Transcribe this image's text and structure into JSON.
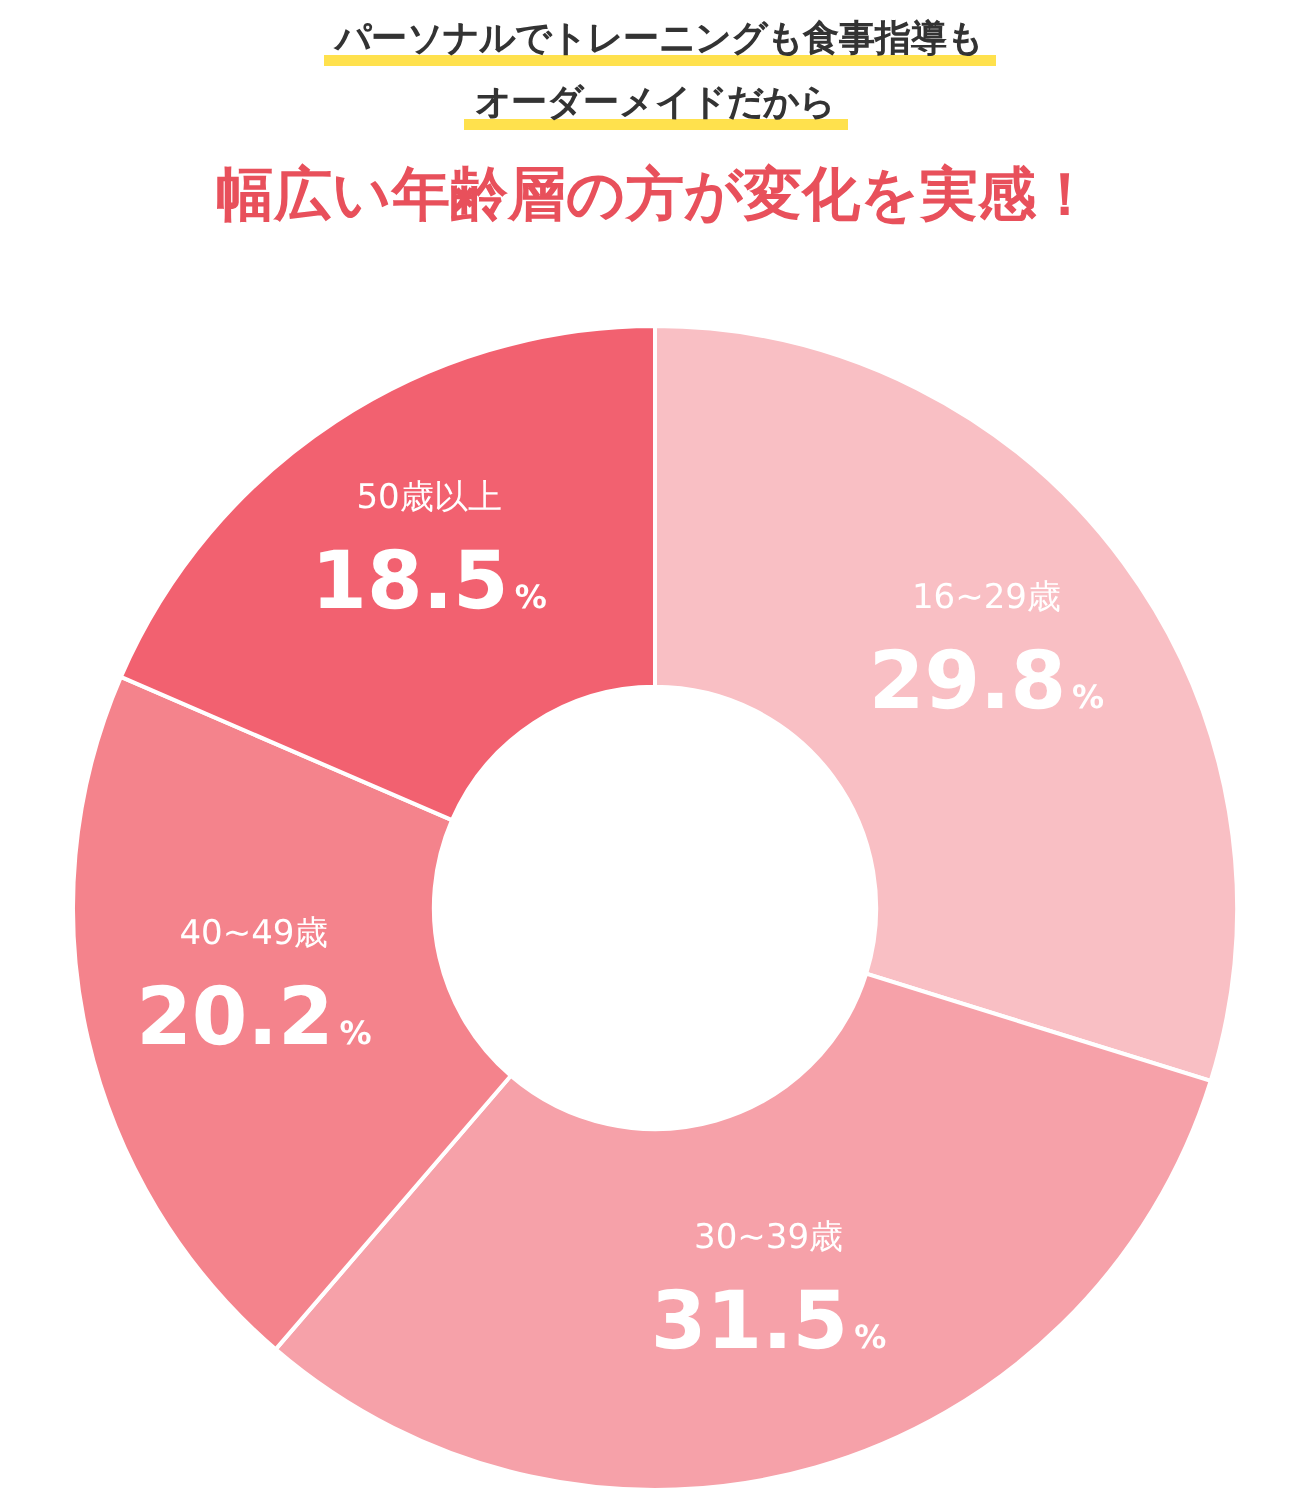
{
  "chart_data": {
    "type": "donut",
    "subtitle": "パーソナルでトレーニングも食事指導もオーダーメイドだから",
    "title": "幅広い年齢層の方が変化を実感！",
    "categories": [
      "16~29歳",
      "30~39歳",
      "40~49歳",
      "50歳以上"
    ],
    "values": [
      29.8,
      31.5,
      20.2,
      18.5
    ],
    "value_labels": [
      "29.8%",
      "31.5%",
      "20.2%",
      "18.5%"
    ],
    "colors": [
      "#f9bfc4",
      "#f6a1a9",
      "#f4838c",
      "#f26170"
    ],
    "legend": false
  }
}
